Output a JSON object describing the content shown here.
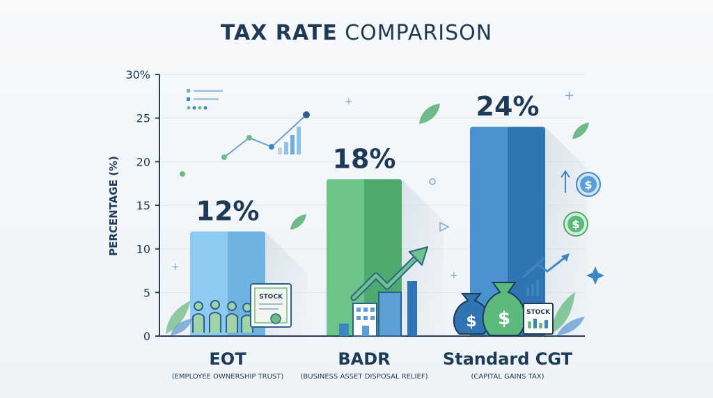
{
  "chart_data": {
    "type": "bar",
    "title_bold": "TAX RATE",
    "title_light": "COMPARISON",
    "ylabel": "PERCENTAGE (%)",
    "ylim": [
      0,
      30
    ],
    "yticks": [
      0,
      5,
      10,
      15,
      20,
      25
    ],
    "ytick_top_label": "30%",
    "grid": true,
    "categories": [
      "EOT",
      "BADR",
      "Standard CGT"
    ],
    "subtitles": [
      "(EMPLOYEE OWNERSHIP TRUST)",
      "(BUSINESS ASSET DISPOSAL RELIEF)",
      "(CAPITAL GAINS TAX)"
    ],
    "values": [
      12,
      18,
      24
    ],
    "value_labels": [
      "12%",
      "18%",
      "24%"
    ]
  },
  "colors": {
    "eot": "#7cbfe9",
    "badr": "#5bb97c",
    "cgt": "#3d86c4",
    "axis": "#2a3f55",
    "grid": "#dfe6ec",
    "text": "#1d3a56",
    "leaf": "#6dbb86"
  },
  "illustrations": {
    "stock_label": "STOCK",
    "dollar_sign": "$"
  }
}
